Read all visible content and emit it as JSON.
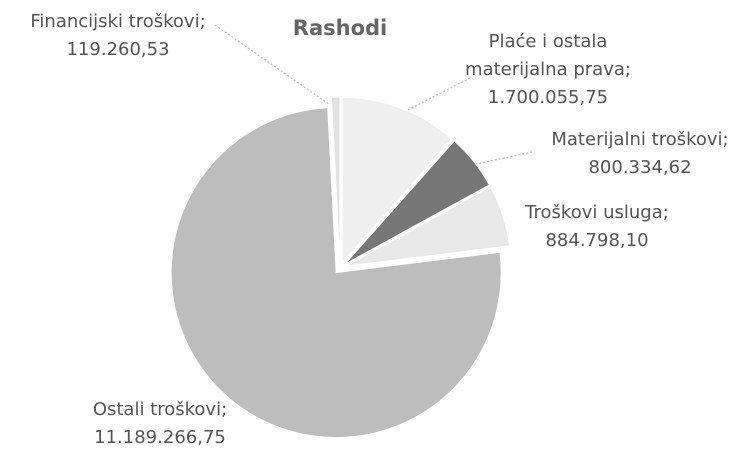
{
  "chart_data": {
    "type": "pie",
    "title": "Rashodi",
    "categories": [
      "Plaće i ostala materijalna prava;",
      "Materijalni troškovi;",
      "Troškovi usluga;",
      "Ostali troškovi;",
      "Financijski troškovi;"
    ],
    "values": [
      1700055.75,
      800334.62,
      884798.1,
      11189266.75,
      119260.53
    ],
    "value_labels": [
      "1.700.055,75",
      "800.334,62",
      "884.798,10",
      "11.189.266,75",
      "119.260,53"
    ],
    "colors": [
      "#efefef",
      "#777777",
      "#e9e9e9",
      "#bdbdbd",
      "#e2e2e2"
    ]
  }
}
